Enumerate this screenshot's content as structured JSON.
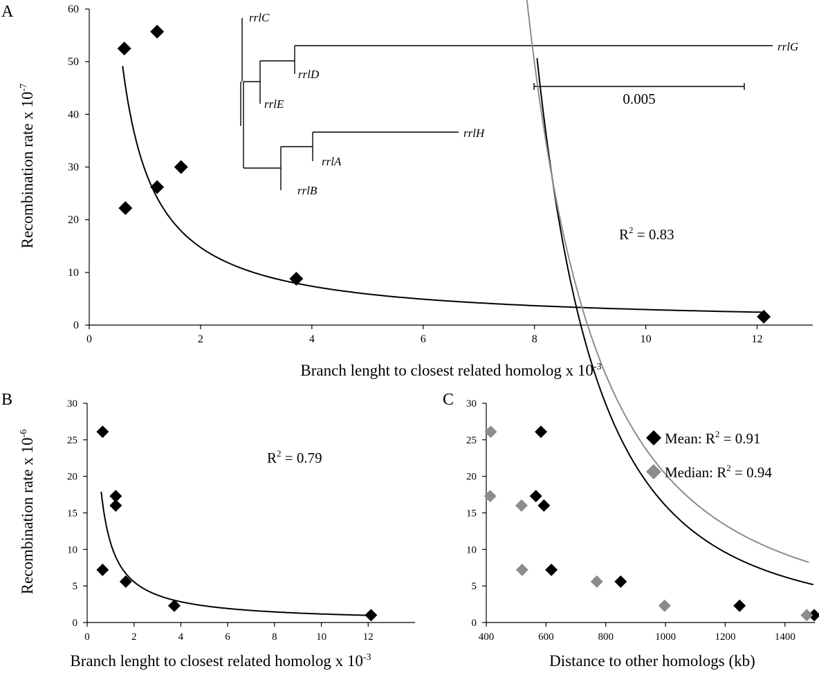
{
  "panels": {
    "a": "A",
    "b": "B",
    "c": "C"
  },
  "chart_data": [
    {
      "id": "A",
      "type": "scatter",
      "xlabel": "Branch lenght to closest related homolog x 10",
      "xlabel_exp": "-3",
      "ylabel": "Recombination rate x 10",
      "ylabel_exp": "-7",
      "xlim": [
        0,
        13
      ],
      "ylim": [
        0,
        60
      ],
      "xticks": [
        0,
        2,
        4,
        6,
        8,
        10,
        12
      ],
      "yticks": [
        0,
        10,
        20,
        30,
        40,
        50,
        60
      ],
      "grid": false,
      "series": [
        {
          "color": "#000000",
          "marker": "diamond",
          "points": [
            [
              0.63,
              52.5
            ],
            [
              1.22,
              55.7
            ],
            [
              0.65,
              22.2
            ],
            [
              1.22,
              26.2
            ],
            [
              1.65,
              30.0
            ],
            [
              3.72,
              8.8
            ],
            [
              12.12,
              1.6
            ]
          ]
        }
      ],
      "trendline": {
        "type": "power",
        "a": 29.5,
        "b": -1.0,
        "xrange": [
          0.6,
          12.1
        ],
        "color": "#000000"
      },
      "annotation": {
        "base": "R",
        "sup": "2",
        "rest": " = 0.83"
      },
      "inset_tree": {
        "leaves": [
          "rrlC",
          "rrlG",
          "rrlD",
          "rrlE",
          "rrlH",
          "rrlA",
          "rrlB"
        ],
        "scale_label": "0.005"
      }
    },
    {
      "id": "B",
      "type": "scatter",
      "xlabel": "Branch lenght to closest related homolog x 10",
      "xlabel_exp": "-3",
      "ylabel": "Recombination rate x 10",
      "ylabel_exp": "-6",
      "xlim": [
        0,
        14
      ],
      "ylim": [
        0,
        30
      ],
      "xticks": [
        0,
        2,
        4,
        6,
        8,
        10,
        12
      ],
      "yticks": [
        0,
        5,
        10,
        15,
        20,
        25,
        30
      ],
      "grid": false,
      "series": [
        {
          "color": "#000000",
          "marker": "diamond",
          "points": [
            [
              0.66,
              26.1
            ],
            [
              1.22,
              17.3
            ],
            [
              1.22,
              16.0
            ],
            [
              0.66,
              7.2
            ],
            [
              1.65,
              5.6
            ],
            [
              3.72,
              2.3
            ],
            [
              12.12,
              1.0
            ]
          ]
        }
      ],
      "trendline": {
        "type": "power",
        "a": 10.9,
        "b": -0.97,
        "xrange": [
          0.6,
          12.1
        ],
        "color": "#000000"
      },
      "annotation": {
        "base": "R",
        "sup": "2",
        "rest": " = 0.79"
      }
    },
    {
      "id": "C",
      "type": "scatter",
      "xlabel": "Distance to other homologs (kb)",
      "xlim": [
        400,
        1500
      ],
      "ylim": [
        0,
        30
      ],
      "xticks": [
        400,
        600,
        800,
        1000,
        1200,
        1400
      ],
      "yticks": [
        0,
        5,
        10,
        15,
        20,
        25,
        30
      ],
      "grid": false,
      "legend": "top-right",
      "series": [
        {
          "name_base": "Mean: R",
          "name_sup": "2",
          "name_rest": " = 0.91",
          "color": "#000000",
          "marker": "diamond",
          "points": [
            [
              583,
              26.1
            ],
            [
              566,
              17.3
            ],
            [
              593,
              16.0
            ],
            [
              618,
              7.2
            ],
            [
              850,
              5.6
            ],
            [
              1248,
              2.3
            ],
            [
              1498,
              1.0
            ]
          ]
        },
        {
          "name_base": "Median: R",
          "name_sup": "2",
          "name_rest": " = 0.94",
          "color": "#8c8c8c",
          "marker": "diamond",
          "points": [
            [
              415,
              26.1
            ],
            [
              413,
              17.3
            ],
            [
              518,
              16.0
            ],
            [
              520,
              7.2
            ],
            [
              770,
              5.6
            ],
            [
              997,
              2.3
            ],
            [
              1473,
              1.0
            ]
          ]
        }
      ],
      "trendlines": [
        {
          "type": "power",
          "a": 16.0,
          "b": -2.8,
          "xrange": [
            570,
            1495
          ],
          "color": "#000000"
        },
        {
          "type": "power",
          "a": 20.3,
          "b": -2.3,
          "xrange": [
            413,
            1480
          ],
          "color": "#8c8c8c"
        }
      ]
    }
  ]
}
